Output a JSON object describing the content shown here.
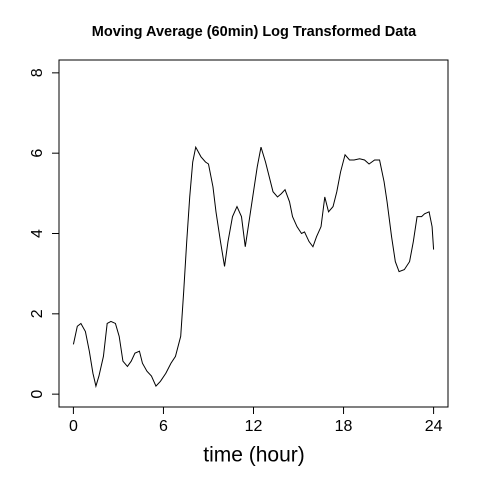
{
  "chart_data": {
    "type": "line",
    "title": "Moving Average (60min) Log Transformed Data",
    "x_label": "time (hour)",
    "x": [
      0,
      0.26,
      0.5,
      0.8,
      1.06,
      1.3,
      1.5,
      1.7,
      2.0,
      2.25,
      2.5,
      2.8,
      3.05,
      3.3,
      3.6,
      3.85,
      4.1,
      4.4,
      4.6,
      4.9,
      5.2,
      5.5,
      5.8,
      6.16,
      6.5,
      6.8,
      7.15,
      7.35,
      7.55,
      7.75,
      7.95,
      8.15,
      8.5,
      8.8,
      9.0,
      9.3,
      9.5,
      9.8,
      10.07,
      10.3,
      10.6,
      10.9,
      11.2,
      11.45,
      11.7,
      12.0,
      12.25,
      12.5,
      12.8,
      13.05,
      13.3,
      13.6,
      13.85,
      14.1,
      14.4,
      14.6,
      14.9,
      15.2,
      15.4,
      15.7,
      15.96,
      16.2,
      16.5,
      16.75,
      17.0,
      17.3,
      17.55,
      17.8,
      18.1,
      18.4,
      18.7,
      19.07,
      19.4,
      19.7,
      20.07,
      20.4,
      20.7,
      20.9,
      21.2,
      21.45,
      21.7,
      22.05,
      22.4,
      22.65,
      22.9,
      23.2,
      23.4,
      23.7,
      23.9,
      24.0
    ],
    "series": [
      {
        "name": "moving average",
        "color": "#000000",
        "values": [
          1.24,
          1.69,
          1.76,
          1.56,
          1.07,
          0.52,
          0.2,
          0.45,
          0.94,
          1.76,
          1.81,
          1.76,
          1.44,
          0.82,
          0.69,
          0.82,
          1.02,
          1.07,
          0.77,
          0.57,
          0.45,
          0.2,
          0.32,
          0.52,
          0.77,
          0.94,
          1.44,
          2.56,
          3.8,
          4.91,
          5.78,
          6.15,
          5.91,
          5.78,
          5.73,
          5.16,
          4.54,
          3.8,
          3.18,
          3.8,
          4.42,
          4.67,
          4.42,
          3.67,
          4.29,
          5.04,
          5.66,
          6.15,
          5.78,
          5.41,
          5.04,
          4.91,
          4.99,
          5.09,
          4.79,
          4.42,
          4.17,
          4.0,
          4.04,
          3.8,
          3.67,
          3.92,
          4.17,
          4.91,
          4.54,
          4.67,
          5.04,
          5.53,
          5.96,
          5.83,
          5.83,
          5.86,
          5.83,
          5.73,
          5.83,
          5.83,
          5.29,
          4.79,
          3.92,
          3.3,
          3.05,
          3.1,
          3.3,
          3.8,
          4.42,
          4.42,
          4.49,
          4.54,
          4.17,
          3.6
        ]
      }
    ],
    "xlim": [
      -0.96,
      24.96
    ],
    "xticks": [
      0,
      6,
      12,
      18,
      24
    ],
    "ylim": [
      -0.32,
      8.32
    ],
    "yticks": [
      0,
      2,
      4,
      6,
      8
    ],
    "grid": false
  }
}
